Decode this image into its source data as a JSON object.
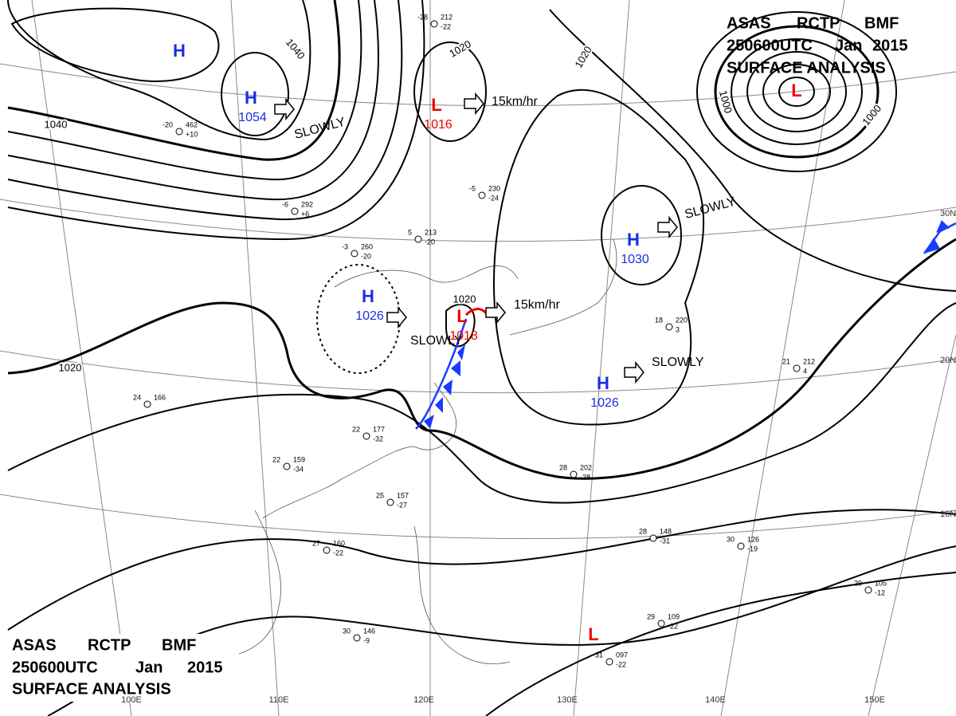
{
  "header": {
    "agency": "ASAS",
    "station": "RCTP",
    "code": "BMF",
    "time": "250600UTC",
    "month": "Jan",
    "year": "2015",
    "title": "SURFACE ANALYSIS"
  },
  "systems": [
    {
      "type": "H",
      "value": null
    },
    {
      "type": "H",
      "value": "1054"
    },
    {
      "type": "L",
      "value": "1016"
    },
    {
      "type": "H",
      "value": "1026"
    },
    {
      "type": "L",
      "value": "1018"
    },
    {
      "type": "H",
      "value": "1030"
    },
    {
      "type": "H",
      "value": "1026"
    },
    {
      "type": "L",
      "value": null
    },
    {
      "type": "L",
      "value": null
    }
  ],
  "movements": [
    "SLOWLY",
    "15km/hr",
    "SLOWLY",
    "15km/hr",
    "SLOWLY",
    "SLOWLY"
  ],
  "isobar_labels": [
    "1040",
    "1040",
    "1020",
    "1020",
    "1000",
    "1000",
    "1020",
    "1020"
  ],
  "latitudes": [
    "30N",
    "20N",
    "10N"
  ],
  "longitudes": [
    "100E",
    "110E",
    "120E",
    "130E",
    "140E",
    "150E"
  ],
  "stations": [
    [
      "-28",
      "212",
      "-22"
    ],
    [
      "-20",
      "462",
      "+10"
    ],
    [
      "-6",
      "292",
      "+6"
    ],
    [
      "-5",
      "230",
      "-24"
    ],
    [
      "-3",
      "260",
      "-20"
    ],
    [
      "5",
      "213",
      "-20"
    ],
    [
      "18",
      "220",
      "3"
    ],
    [
      "21",
      "212",
      "4"
    ],
    [
      "24",
      "166",
      ""
    ],
    [
      "22",
      "177",
      "-32"
    ],
    [
      "22",
      "159",
      "-34"
    ],
    [
      "25",
      "157",
      "-27"
    ],
    [
      "27",
      "160",
      "-22"
    ],
    [
      "28",
      "202",
      "-28"
    ],
    [
      "28",
      "148",
      "-31"
    ],
    [
      "30",
      "126",
      "-19"
    ],
    [
      "29",
      "105",
      "-12"
    ],
    [
      "29",
      "109",
      "-22"
    ],
    [
      "31",
      "097",
      "-22"
    ],
    [
      "30",
      "146",
      "-9"
    ]
  ]
}
